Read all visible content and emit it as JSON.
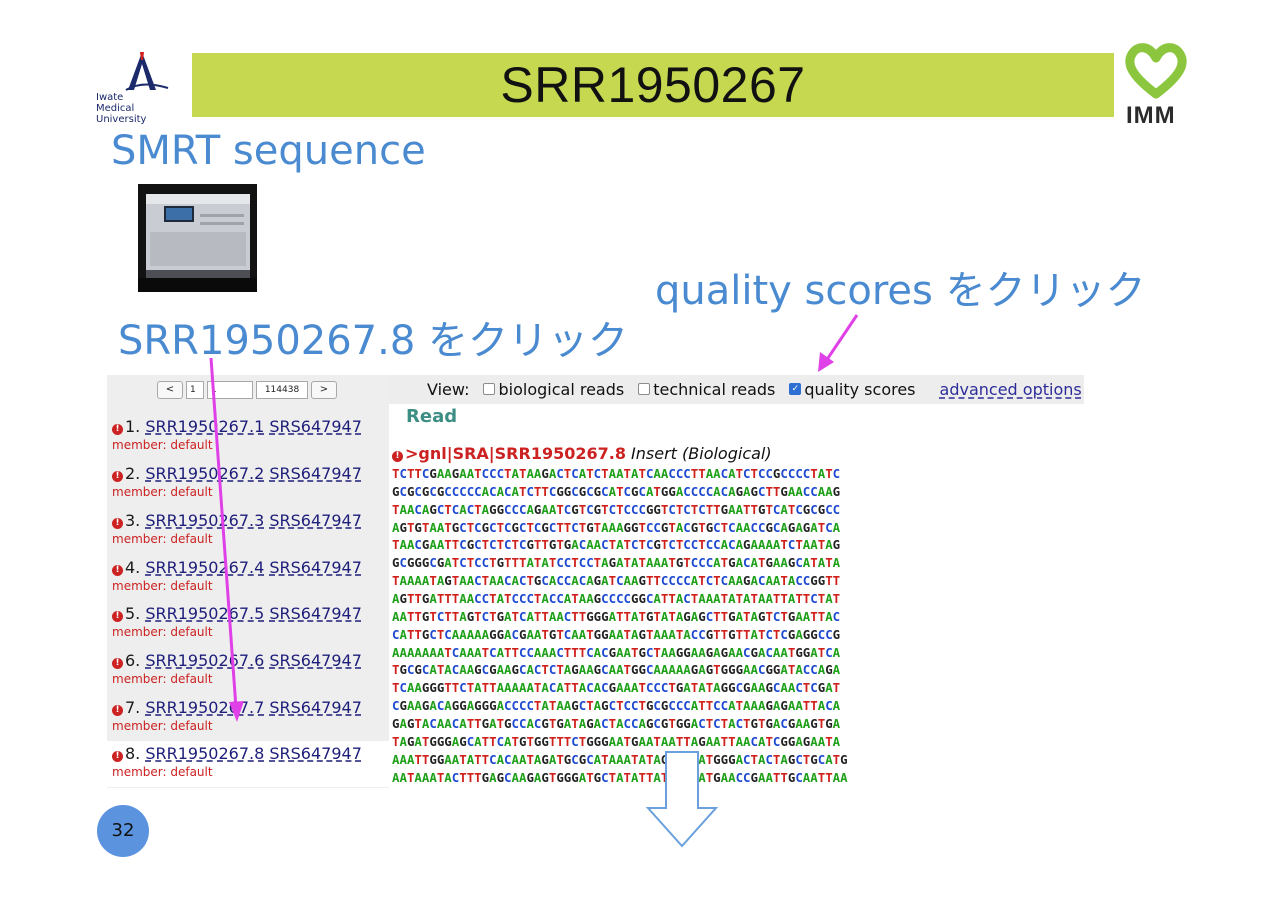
{
  "slide": {
    "title": "SRR1950267",
    "left_logo_text": [
      "Iwate",
      "Medical University"
    ],
    "right_logo_text": "IMM",
    "subtitle": "SMRT sequence",
    "instruction_quality": "quality scores をクリック",
    "instruction_read": "SRR1950267.8 をクリック",
    "page_number": "32",
    "colors": {
      "title_bar": "#c5d84f",
      "annotation_text": "#4a8ad0",
      "arrow": "#e040e8",
      "page_badge": "#5b93df"
    }
  },
  "pager": {
    "prev": "<",
    "page_from": "1",
    "page_to": "1",
    "total": "114438",
    "next": ">"
  },
  "reads": [
    {
      "index": "1.",
      "accession": "SRR1950267.1",
      "sample": "SRS647947",
      "member": "member:  default"
    },
    {
      "index": "2.",
      "accession": "SRR1950267.2",
      "sample": "SRS647947",
      "member": "member:  default"
    },
    {
      "index": "3.",
      "accession": "SRR1950267.3",
      "sample": "SRS647947",
      "member": "member:  default"
    },
    {
      "index": "4.",
      "accession": "SRR1950267.4",
      "sample": "SRS647947",
      "member": "member:  default"
    },
    {
      "index": "5.",
      "accession": "SRR1950267.5",
      "sample": "SRS647947",
      "member": "member:  default"
    },
    {
      "index": "6.",
      "accession": "SRR1950267.6",
      "sample": "SRS647947",
      "member": "member:  default"
    },
    {
      "index": "7.",
      "accession": "SRR1950267.7",
      "sample": "SRS647947",
      "member": "member:  default"
    },
    {
      "index": "8.",
      "accession": "SRR1950267.8",
      "sample": "SRS647947",
      "member": "member:  default"
    }
  ],
  "selected_read": "SRR1950267.8",
  "view": {
    "label": "View:",
    "options": [
      {
        "label": "biological reads",
        "checked": false
      },
      {
        "label": "technical reads",
        "checked": false
      },
      {
        "label": "quality scores",
        "checked": true
      }
    ],
    "advanced": "advanced options"
  },
  "read_panel": {
    "heading": "Read",
    "defline_accession": ">gnl|SRA|SRR1950267.8",
    "defline_type": "Insert (Biological)",
    "sequence_lines": [
      "TCTTCGAAGAATCCCTATAAGACTCATCTAATATCAACCCTTAACATCTCCGCCCCTATC",
      "GCGCGCGCCCCCACACATCTTCGGCGCGCATCGCATGGACCCCACAGAGCTTGAACCAAG",
      "TAACAGCTCACTAGGCCCAGAATCGTCGTCTCCCGGTCTCTCTTGAATTGTCATCGCGCC",
      "AGTGTAATGCTCGCTCGCTCGCTTCTGTAAAGGTCCGTACGTGCTCAACCGCAGAGATCA",
      "TAACGAATTCGCTCTCTCGTTGTGACAACTATCTCGTCTCCTCCACAGAAAATCTAATAG",
      "GCGGGCGATCTCCTGTTTATATCCTCCTAGATATAAATGTCCCATGACATGAAGCATATA",
      "TAAAATAGTAACTAACACTGCACCACAGATCAAGTTCCCCATCTCAAGACAATACCGGTT",
      "AGTTGATTTAACCTATCCCTACCATAAGCCCCGGCATTACTAAATATATAATTATTCTAT",
      "AATTGTCTTAGTCTGATCATTAACTTGGGATTATGTATAGAGCTTGATAGTCTGAATTAC",
      "CATTGCTCAAAAAGGACGAATGTCAATGGAATAGTAAATACCGTTGTTATCTCGAGGCCG",
      "AAAAAAATCAAATCATTCCAAACTTTCACGAATGCTAAGGAAGAGAACGACAATGGATCA",
      "TGCGCATACAAGCGAAGCACTCTAGAAGCAATGGCAAAAAGAGTGGGAACGGATACCAGA",
      "TCAAGGGTTCTATTAAAAATACATTACACGAAATCCCTGATATAGGCGAAGCAACTCGAT",
      "CGAAGACAGGAGGGACCCCTATAAGCTAGCTCCTGCGCCCATTCCATAAAGAGAATTACA",
      "GAGTACAACATTGATGCCACGTGATAGACTACCAGCGTGGACTCTACTGTGACGAAGTGA",
      "TAGATGGGAGCATTCATGTGGTTTCTGGGAATGAATAATTAGAATTAACATCGGAGAATA",
      "AAATTGGAATATTCACAATAGATGCGCATAAATATAGTTGTATGGGACTACTAGCTGCATG",
      "AATAAATACTTTGAGCAAGAGTGGGATGCTATATTATGAATATGAACCGAATTGCAATTAA"
    ]
  }
}
